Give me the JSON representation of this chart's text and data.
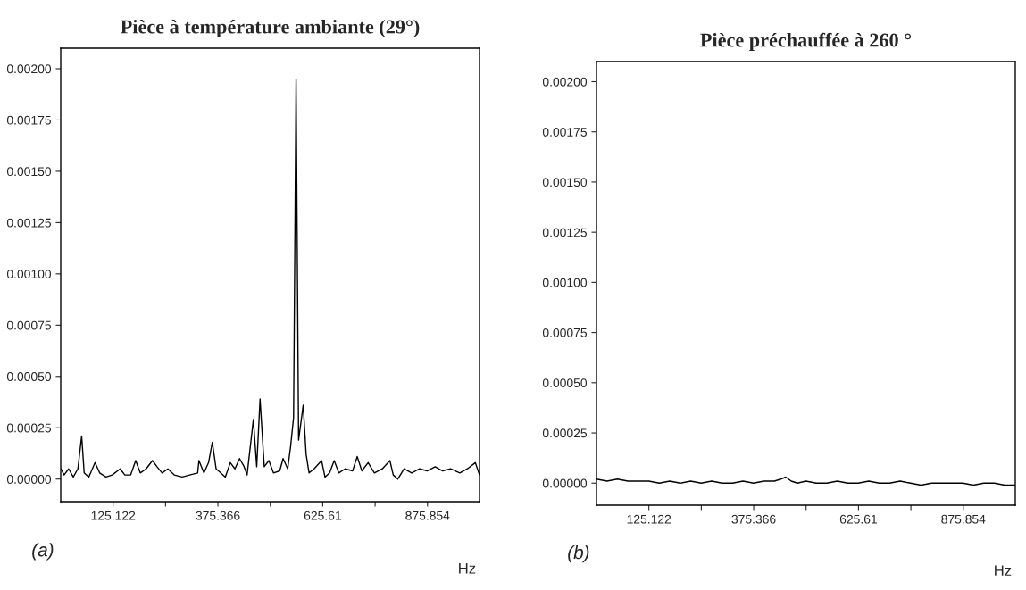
{
  "chart_data": [
    {
      "type": "line",
      "title": "Pièce à température ambiante (29°)",
      "xlabel": "Hz",
      "annotations": [
        "(a)"
      ],
      "series": [
        {
          "color": "#000000",
          "x": [
            0.7,
            8,
            19,
            30,
            41,
            50,
            56,
            67,
            82,
            93,
            108,
            123,
            142,
            153,
            167,
            179,
            190,
            204,
            219,
            230,
            242,
            256,
            271,
            290,
            308,
            327,
            330,
            342,
            353,
            362,
            371,
            382,
            393,
            405,
            416,
            427,
            438,
            445,
            460,
            468,
            476,
            486,
            497,
            508,
            523,
            531,
            542,
            549,
            556,
            562,
            568,
            579,
            586,
            593,
            605,
            623,
            631,
            642,
            653,
            664,
            679,
            697,
            708,
            719,
            734,
            749,
            768,
            786,
            794,
            805,
            820,
            838,
            857,
            875,
            894,
            912,
            931,
            953,
            971,
            990,
            1000
          ],
          "values": [
            5e-05,
            2e-05,
            5e-05,
            1e-05,
            5e-05,
            0.00021,
            3e-05,
            1e-05,
            8e-05,
            3e-05,
            1e-05,
            2e-05,
            5e-05,
            2e-05,
            2e-05,
            9e-05,
            3e-05,
            5e-05,
            9e-05,
            6e-05,
            3e-05,
            5e-05,
            2e-05,
            1e-05,
            2e-05,
            3e-05,
            9e-05,
            3e-05,
            8e-05,
            0.00018,
            5e-05,
            3e-05,
            1e-05,
            8e-05,
            5e-05,
            0.0001,
            6e-05,
            2e-05,
            0.00029,
            6e-05,
            0.00039,
            6e-05,
            9e-05,
            3e-05,
            4e-05,
            0.0001,
            5e-05,
            0.00016,
            0.0003,
            0.00195,
            0.00019,
            0.00036,
            0.00012,
            3e-05,
            5e-05,
            9e-05,
            1e-05,
            3e-05,
            9e-05,
            3e-05,
            5e-05,
            4e-05,
            0.00011,
            4e-05,
            8e-05,
            3e-05,
            5e-05,
            9e-05,
            2e-05,
            0.0,
            5e-05,
            3e-05,
            5e-05,
            4e-05,
            6e-05,
            4e-05,
            5e-05,
            3e-05,
            5e-05,
            8e-05,
            2e-05
          ]
        }
      ],
      "xlim": [
        0,
        1000
      ],
      "ylim": [
        -0.00011,
        0.0021
      ],
      "xticks": [
        125.122,
        {
          "value": 250.244,
          "label": null
        },
        375.366,
        {
          "value": 500.488,
          "label": null
        },
        625.61,
        {
          "value": 750.732,
          "label": null
        },
        875.854
      ],
      "yticks": [
        {
          "value": 0,
          "label": "0.00000"
        },
        {
          "value": 0.00025,
          "label": "0.00025"
        },
        {
          "value": 0.0005,
          "label": "0.00050"
        },
        {
          "value": 0.00075,
          "label": "0.00075"
        },
        {
          "value": 0.001,
          "label": "0.00100"
        },
        {
          "value": 0.00125,
          "label": "0.00125"
        },
        {
          "value": 0.0015,
          "label": "0.00150"
        },
        {
          "value": 0.00175,
          "label": "0.00175"
        },
        {
          "value": 0.002,
          "label": "0.00200"
        }
      ],
      "grid": false,
      "legend": false
    },
    {
      "type": "line",
      "title": "Pièce préchauffée à 260 °",
      "xlabel": "Hz",
      "annotations": [
        "(b)"
      ],
      "series": [
        {
          "color": "#000000",
          "x": [
            0,
            25,
            50,
            75,
            100,
            125,
            150,
            175,
            200,
            225,
            250,
            275,
            300,
            325,
            350,
            375,
            400,
            425,
            440,
            452,
            465,
            480,
            500,
            525,
            550,
            575,
            600,
            625,
            650,
            675,
            700,
            725,
            750,
            775,
            800,
            825,
            850,
            875,
            900,
            925,
            950,
            975,
            1000
          ],
          "values": [
            2e-05,
            1e-05,
            2e-05,
            1e-05,
            1e-05,
            1e-05,
            0.0,
            1e-05,
            0.0,
            1e-05,
            0.0,
            1e-05,
            0.0,
            0.0,
            1e-05,
            0.0,
            1e-05,
            1e-05,
            2e-05,
            3e-05,
            1e-05,
            0.0,
            1e-05,
            0.0,
            0.0,
            1e-05,
            0.0,
            0.0,
            1e-05,
            0.0,
            0.0,
            1e-05,
            0.0,
            -1e-05,
            0.0,
            0.0,
            0.0,
            0.0,
            -1e-05,
            0.0,
            0.0,
            -1e-05,
            -1e-05
          ]
        }
      ],
      "xlim": [
        0,
        1000
      ],
      "ylim": [
        -0.00011,
        0.0021
      ],
      "xticks": [
        125.122,
        {
          "value": 250.244,
          "label": null
        },
        375.366,
        {
          "value": 500.488,
          "label": null
        },
        625.61,
        {
          "value": 750.732,
          "label": null
        },
        875.854
      ],
      "yticks": [
        {
          "value": 0,
          "label": "0.00000"
        },
        {
          "value": 0.00025,
          "label": "0.00025"
        },
        {
          "value": 0.0005,
          "label": "0.00050"
        },
        {
          "value": 0.00075,
          "label": "0.00075"
        },
        {
          "value": 0.001,
          "label": "0.00100"
        },
        {
          "value": 0.00125,
          "label": "0.00125"
        },
        {
          "value": 0.0015,
          "label": "0.00150"
        },
        {
          "value": 0.00175,
          "label": "0.00175"
        },
        {
          "value": 0.002,
          "label": "0.00200"
        }
      ],
      "grid": false,
      "legend": false
    }
  ]
}
